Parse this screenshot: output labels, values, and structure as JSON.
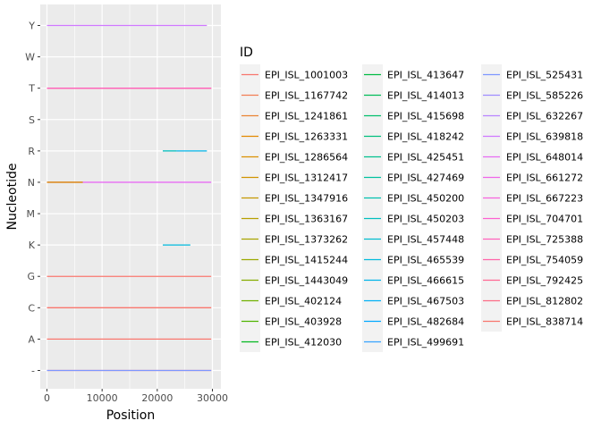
{
  "chart_data": {
    "type": "line",
    "xlabel": "Position",
    "ylabel": "Nucleotide",
    "xlim": [
      -2500,
      32000
    ],
    "x_ticks": [
      0,
      10000,
      20000,
      30000
    ],
    "x_tick_labels": [
      "0",
      "10000",
      "20000",
      "30000"
    ],
    "y_categories": [
      "-",
      "A",
      "C",
      "G",
      "K",
      "M",
      "N",
      "R",
      "S",
      "T",
      "W",
      "Y"
    ],
    "grid": true,
    "legend_title": "ID",
    "legend_placement": "right",
    "series": [
      {
        "name": "EPI_ISL_1001003",
        "color": "#F8766D"
      },
      {
        "name": "EPI_ISL_1167742",
        "color": "#F27D53"
      },
      {
        "name": "EPI_ISL_1241861",
        "color": "#EA8331"
      },
      {
        "name": "EPI_ISL_1263331",
        "color": "#E38900"
      },
      {
        "name": "EPI_ISL_1286564",
        "color": "#DA8F00"
      },
      {
        "name": "EPI_ISL_1312417",
        "color": "#D09400"
      },
      {
        "name": "EPI_ISL_1347916",
        "color": "#C59900"
      },
      {
        "name": "EPI_ISL_1363167",
        "color": "#B79F00"
      },
      {
        "name": "EPI_ISL_1373262",
        "color": "#A9A400"
      },
      {
        "name": "EPI_ISL_1415244",
        "color": "#9AA800"
      },
      {
        "name": "EPI_ISL_1443049",
        "color": "#86AC00"
      },
      {
        "name": "EPI_ISL_402124",
        "color": "#6FB000"
      },
      {
        "name": "EPI_ISL_403928",
        "color": "#4FB400"
      },
      {
        "name": "EPI_ISL_412030",
        "color": "#00B81F"
      },
      {
        "name": "EPI_ISL_413647",
        "color": "#00BA42"
      },
      {
        "name": "EPI_ISL_414013",
        "color": "#00BC59"
      },
      {
        "name": "EPI_ISL_415698",
        "color": "#00BE6C"
      },
      {
        "name": "EPI_ISL_418242",
        "color": "#00BF7D"
      },
      {
        "name": "EPI_ISL_425451",
        "color": "#00C08E"
      },
      {
        "name": "EPI_ISL_427469",
        "color": "#00C19F"
      },
      {
        "name": "EPI_ISL_450200",
        "color": "#00C0AF"
      },
      {
        "name": "EPI_ISL_450203",
        "color": "#00BFBF"
      },
      {
        "name": "EPI_ISL_457448",
        "color": "#00BDCE"
      },
      {
        "name": "EPI_ISL_465539",
        "color": "#00BADC"
      },
      {
        "name": "EPI_ISL_466615",
        "color": "#00B5E9"
      },
      {
        "name": "EPI_ISL_467503",
        "color": "#00B0F6"
      },
      {
        "name": "EPI_ISL_482684",
        "color": "#00A9FF"
      },
      {
        "name": "EPI_ISL_499691",
        "color": "#35A2FF"
      },
      {
        "name": "EPI_ISL_525431",
        "color": "#7D96FF"
      },
      {
        "name": "EPI_ISL_585226",
        "color": "#9F8CFF"
      },
      {
        "name": "EPI_ISL_632267",
        "color": "#B983FF"
      },
      {
        "name": "EPI_ISL_639818",
        "color": "#CF78FF"
      },
      {
        "name": "EPI_ISL_648014",
        "color": "#E76BF3"
      },
      {
        "name": "EPI_ISL_661272",
        "color": "#F066E9"
      },
      {
        "name": "EPI_ISL_667223",
        "color": "#F864DD"
      },
      {
        "name": "EPI_ISL_704701",
        "color": "#FD61D1"
      },
      {
        "name": "EPI_ISL_725388",
        "color": "#FF62BC"
      },
      {
        "name": "EPI_ISL_754059",
        "color": "#FF64A8"
      },
      {
        "name": "EPI_ISL_792425",
        "color": "#FF6893"
      },
      {
        "name": "EPI_ISL_812802",
        "color": "#FC6C85"
      },
      {
        "name": "EPI_ISL_838714",
        "color": "#F8766D"
      }
    ],
    "segments": [
      {
        "y": "-",
        "x": [
          0,
          29800
        ],
        "color": "#F8766D"
      },
      {
        "y": "-",
        "x": [
          0,
          29800
        ],
        "color": "#7D96FF"
      },
      {
        "y": "A",
        "x": [
          0,
          29800
        ],
        "color": "#F8766D"
      },
      {
        "y": "C",
        "x": [
          0,
          29800
        ],
        "color": "#F8766D"
      },
      {
        "y": "G",
        "x": [
          0,
          29800
        ],
        "color": "#F8766D"
      },
      {
        "y": "K",
        "x": [
          21000,
          26000
        ],
        "color": "#00BADC"
      },
      {
        "y": "N",
        "x": [
          0,
          29800
        ],
        "color": "#E76BF3"
      },
      {
        "y": "N",
        "x": [
          0,
          6500
        ],
        "color": "#DA8F00"
      },
      {
        "y": "R",
        "x": [
          21000,
          23500
        ],
        "color": "#00BFBF"
      },
      {
        "y": "R",
        "x": [
          23500,
          29000
        ],
        "color": "#00B5E9"
      },
      {
        "y": "T",
        "x": [
          0,
          29800
        ],
        "color": "#F8766D"
      },
      {
        "y": "T",
        "x": [
          0,
          29800
        ],
        "color": "#FF62BC"
      },
      {
        "y": "Y",
        "x": [
          0,
          29000
        ],
        "color": "#CF78FF"
      }
    ]
  }
}
